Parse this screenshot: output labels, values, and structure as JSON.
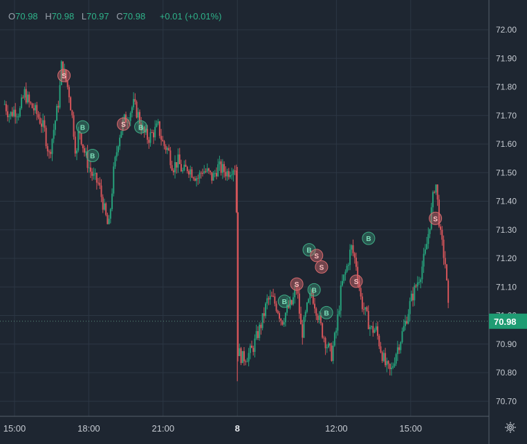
{
  "legend": {
    "open_label": "O",
    "open_value": "70.98",
    "high_label": "H",
    "high_value": "70.98",
    "low_label": "L",
    "low_value": "70.97",
    "close_label": "C",
    "close_value": "70.98",
    "change": "+0.01 (+0.01%)"
  },
  "colors": {
    "background": "#1e2631",
    "grid": "#2c3744",
    "up": "#26a17b",
    "down": "#d6555a",
    "buy_marker": "#3fae87",
    "sell_marker": "#d86b6e",
    "price_tag": "#1f9c73"
  },
  "icons": {
    "settings": "gear-icon"
  },
  "chart_data": {
    "type": "candlestick",
    "y_axis": {
      "ticks": [
        "72.00",
        "71.90",
        "71.80",
        "71.70",
        "71.60",
        "71.50",
        "71.40",
        "71.30",
        "71.20",
        "71.10",
        "71.00",
        "70.90",
        "70.80",
        "70.70"
      ],
      "range": [
        70.64,
        72.1
      ]
    },
    "x_axis": {
      "ticks": [
        {
          "label": "15:00",
          "hours": 0,
          "bold": false
        },
        {
          "label": "18:00",
          "hours": 3,
          "bold": false
        },
        {
          "label": "21:00",
          "hours": 6,
          "bold": false
        },
        {
          "label": "8",
          "hours": 9,
          "bold": true
        },
        {
          "label": "12:00",
          "hours": 13,
          "bold": false
        },
        {
          "label": "15:00",
          "hours": 16,
          "bold": false
        }
      ]
    },
    "last_price": "70.98",
    "price_path": [
      [
        -0.4,
        71.74
      ],
      [
        -0.2,
        71.7
      ],
      [
        0.0,
        71.72
      ],
      [
        0.2,
        71.71
      ],
      [
        0.4,
        71.78
      ],
      [
        0.6,
        71.74
      ],
      [
        0.8,
        71.72
      ],
      [
        1.0,
        71.69
      ],
      [
        1.2,
        71.65
      ],
      [
        1.4,
        71.56
      ],
      [
        1.6,
        71.66
      ],
      [
        1.8,
        71.76
      ],
      [
        1.9,
        71.88
      ],
      [
        2.0,
        71.85
      ],
      [
        2.2,
        71.78
      ],
      [
        2.35,
        71.68
      ],
      [
        2.5,
        71.55
      ],
      [
        2.6,
        71.66
      ],
      [
        2.8,
        71.58
      ],
      [
        3.0,
        71.52
      ],
      [
        3.2,
        71.48
      ],
      [
        3.4,
        71.46
      ],
      [
        3.6,
        71.38
      ],
      [
        3.8,
        71.3
      ],
      [
        4.0,
        71.5
      ],
      [
        4.2,
        71.62
      ],
      [
        4.4,
        71.68
      ],
      [
        4.6,
        71.7
      ],
      [
        4.8,
        71.74
      ],
      [
        5.0,
        71.7
      ],
      [
        5.2,
        71.64
      ],
      [
        5.4,
        71.62
      ],
      [
        5.6,
        71.64
      ],
      [
        5.8,
        71.66
      ],
      [
        6.0,
        71.6
      ],
      [
        6.2,
        71.58
      ],
      [
        6.4,
        71.52
      ],
      [
        6.6,
        71.54
      ],
      [
        6.8,
        71.5
      ],
      [
        7.0,
        71.52
      ],
      [
        7.2,
        71.5
      ],
      [
        7.4,
        71.48
      ],
      [
        7.6,
        71.51
      ],
      [
        7.8,
        71.5
      ],
      [
        8.0,
        71.48
      ],
      [
        8.2,
        71.52
      ],
      [
        8.4,
        71.51
      ],
      [
        8.6,
        71.5
      ],
      [
        8.8,
        71.52
      ],
      [
        8.95,
        71.52
      ],
      [
        9.0,
        70.88
      ],
      [
        9.2,
        70.85
      ],
      [
        9.4,
        70.86
      ],
      [
        9.6,
        70.88
      ],
      [
        9.8,
        70.93
      ],
      [
        10.0,
        70.98
      ],
      [
        10.2,
        71.05
      ],
      [
        10.4,
        71.06
      ],
      [
        10.6,
        71.03
      ],
      [
        10.8,
        70.98
      ],
      [
        11.0,
        71.02
      ],
      [
        11.2,
        71.04
      ],
      [
        11.4,
        71.1
      ],
      [
        11.6,
        70.93
      ],
      [
        11.8,
        71.02
      ],
      [
        12.0,
        71.08
      ],
      [
        12.2,
        71.02
      ],
      [
        12.4,
        70.95
      ],
      [
        12.6,
        70.9
      ],
      [
        12.8,
        70.86
      ],
      [
        13.0,
        70.95
      ],
      [
        13.2,
        71.1
      ],
      [
        13.4,
        71.16
      ],
      [
        13.6,
        71.24
      ],
      [
        13.8,
        71.18
      ],
      [
        14.0,
        71.05
      ],
      [
        14.2,
        71.0
      ],
      [
        14.4,
        70.95
      ],
      [
        14.6,
        70.95
      ],
      [
        14.8,
        70.88
      ],
      [
        15.0,
        70.82
      ],
      [
        15.2,
        70.8
      ],
      [
        15.4,
        70.87
      ],
      [
        15.6,
        70.92
      ],
      [
        15.8,
        70.98
      ],
      [
        16.0,
        71.05
      ],
      [
        16.2,
        71.1
      ],
      [
        16.4,
        71.15
      ],
      [
        16.6,
        71.22
      ],
      [
        16.8,
        71.34
      ],
      [
        17.0,
        71.48
      ],
      [
        17.2,
        71.28
      ],
      [
        17.4,
        71.18
      ],
      [
        17.55,
        70.98
      ]
    ],
    "trade_markers": [
      {
        "hours": 2.0,
        "price": 71.84,
        "side": "S"
      },
      {
        "hours": 2.75,
        "price": 71.66,
        "side": "B"
      },
      {
        "hours": 3.15,
        "price": 71.56,
        "side": "B"
      },
      {
        "hours": 4.4,
        "price": 71.67,
        "side": "S"
      },
      {
        "hours": 5.1,
        "price": 71.66,
        "side": "B"
      },
      {
        "hours": 10.9,
        "price": 71.05,
        "side": "B"
      },
      {
        "hours": 11.4,
        "price": 71.11,
        "side": "S"
      },
      {
        "hours": 11.9,
        "price": 71.23,
        "side": "B"
      },
      {
        "hours": 12.2,
        "price": 71.21,
        "side": "S"
      },
      {
        "hours": 12.4,
        "price": 71.17,
        "side": "S"
      },
      {
        "hours": 12.1,
        "price": 71.09,
        "side": "B"
      },
      {
        "hours": 12.6,
        "price": 71.01,
        "side": "B"
      },
      {
        "hours": 13.8,
        "price": 71.12,
        "side": "S"
      },
      {
        "hours": 14.3,
        "price": 71.27,
        "side": "B"
      },
      {
        "hours": 17.0,
        "price": 71.34,
        "side": "S"
      }
    ]
  }
}
